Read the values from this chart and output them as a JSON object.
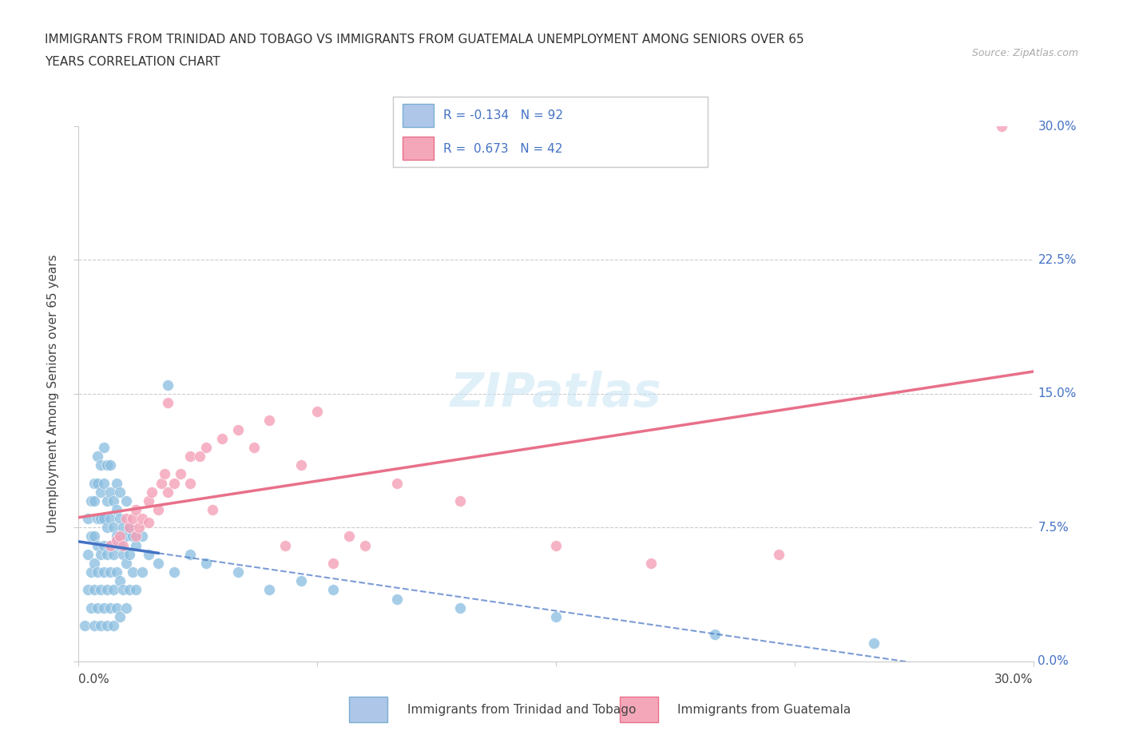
{
  "title_line1": "IMMIGRANTS FROM TRINIDAD AND TOBAGO VS IMMIGRANTS FROM GUATEMALA UNEMPLOYMENT AMONG SENIORS OVER 65",
  "title_line2": "YEARS CORRELATION CHART",
  "source": "Source: ZipAtlas.com",
  "ylabel": "Unemployment Among Seniors over 65 years",
  "watermark": "ZIPatlas",
  "tt_color": "#89bde0",
  "gt_color": "#f4a0b8",
  "tt_line_color": "#4472c4",
  "gt_line_color": "#e8708a",
  "xlim": [
    0.0,
    0.3
  ],
  "ylim": [
    0.0,
    0.3
  ],
  "grid_color": "#cccccc",
  "background_color": "#ffffff",
  "tt_scatter": [
    [
      0.002,
      0.02
    ],
    [
      0.003,
      0.04
    ],
    [
      0.003,
      0.06
    ],
    [
      0.003,
      0.08
    ],
    [
      0.004,
      0.03
    ],
    [
      0.004,
      0.05
    ],
    [
      0.004,
      0.07
    ],
    [
      0.004,
      0.09
    ],
    [
      0.005,
      0.02
    ],
    [
      0.005,
      0.04
    ],
    [
      0.005,
      0.055
    ],
    [
      0.005,
      0.07
    ],
    [
      0.005,
      0.09
    ],
    [
      0.005,
      0.1
    ],
    [
      0.006,
      0.03
    ],
    [
      0.006,
      0.05
    ],
    [
      0.006,
      0.065
    ],
    [
      0.006,
      0.08
    ],
    [
      0.006,
      0.1
    ],
    [
      0.006,
      0.115
    ],
    [
      0.007,
      0.02
    ],
    [
      0.007,
      0.04
    ],
    [
      0.007,
      0.06
    ],
    [
      0.007,
      0.08
    ],
    [
      0.007,
      0.095
    ],
    [
      0.007,
      0.11
    ],
    [
      0.008,
      0.03
    ],
    [
      0.008,
      0.05
    ],
    [
      0.008,
      0.065
    ],
    [
      0.008,
      0.08
    ],
    [
      0.008,
      0.1
    ],
    [
      0.008,
      0.12
    ],
    [
      0.009,
      0.02
    ],
    [
      0.009,
      0.04
    ],
    [
      0.009,
      0.06
    ],
    [
      0.009,
      0.075
    ],
    [
      0.009,
      0.09
    ],
    [
      0.009,
      0.11
    ],
    [
      0.01,
      0.03
    ],
    [
      0.01,
      0.05
    ],
    [
      0.01,
      0.065
    ],
    [
      0.01,
      0.08
    ],
    [
      0.01,
      0.095
    ],
    [
      0.01,
      0.11
    ],
    [
      0.011,
      0.02
    ],
    [
      0.011,
      0.04
    ],
    [
      0.011,
      0.06
    ],
    [
      0.011,
      0.075
    ],
    [
      0.011,
      0.09
    ],
    [
      0.012,
      0.03
    ],
    [
      0.012,
      0.05
    ],
    [
      0.012,
      0.07
    ],
    [
      0.012,
      0.085
    ],
    [
      0.012,
      0.1
    ],
    [
      0.013,
      0.025
    ],
    [
      0.013,
      0.045
    ],
    [
      0.013,
      0.065
    ],
    [
      0.013,
      0.08
    ],
    [
      0.013,
      0.095
    ],
    [
      0.014,
      0.04
    ],
    [
      0.014,
      0.06
    ],
    [
      0.014,
      0.075
    ],
    [
      0.015,
      0.03
    ],
    [
      0.015,
      0.055
    ],
    [
      0.015,
      0.07
    ],
    [
      0.015,
      0.09
    ],
    [
      0.016,
      0.04
    ],
    [
      0.016,
      0.06
    ],
    [
      0.016,
      0.075
    ],
    [
      0.017,
      0.05
    ],
    [
      0.017,
      0.07
    ],
    [
      0.018,
      0.04
    ],
    [
      0.018,
      0.065
    ],
    [
      0.02,
      0.05
    ],
    [
      0.02,
      0.07
    ],
    [
      0.022,
      0.06
    ],
    [
      0.025,
      0.055
    ],
    [
      0.028,
      0.155
    ],
    [
      0.03,
      0.05
    ],
    [
      0.035,
      0.06
    ],
    [
      0.04,
      0.055
    ],
    [
      0.05,
      0.05
    ],
    [
      0.06,
      0.04
    ],
    [
      0.07,
      0.045
    ],
    [
      0.08,
      0.04
    ],
    [
      0.1,
      0.035
    ],
    [
      0.12,
      0.03
    ],
    [
      0.15,
      0.025
    ],
    [
      0.2,
      0.015
    ],
    [
      0.25,
      0.01
    ]
  ],
  "gt_scatter": [
    [
      0.01,
      0.065
    ],
    [
      0.012,
      0.068
    ],
    [
      0.013,
      0.07
    ],
    [
      0.014,
      0.065
    ],
    [
      0.015,
      0.08
    ],
    [
      0.016,
      0.075
    ],
    [
      0.017,
      0.08
    ],
    [
      0.018,
      0.085
    ],
    [
      0.018,
      0.07
    ],
    [
      0.019,
      0.075
    ],
    [
      0.02,
      0.08
    ],
    [
      0.022,
      0.09
    ],
    [
      0.022,
      0.078
    ],
    [
      0.023,
      0.095
    ],
    [
      0.025,
      0.085
    ],
    [
      0.026,
      0.1
    ],
    [
      0.027,
      0.105
    ],
    [
      0.028,
      0.095
    ],
    [
      0.028,
      0.145
    ],
    [
      0.03,
      0.1
    ],
    [
      0.032,
      0.105
    ],
    [
      0.035,
      0.115
    ],
    [
      0.035,
      0.1
    ],
    [
      0.038,
      0.115
    ],
    [
      0.04,
      0.12
    ],
    [
      0.042,
      0.085
    ],
    [
      0.045,
      0.125
    ],
    [
      0.05,
      0.13
    ],
    [
      0.055,
      0.12
    ],
    [
      0.06,
      0.135
    ],
    [
      0.065,
      0.065
    ],
    [
      0.07,
      0.11
    ],
    [
      0.075,
      0.14
    ],
    [
      0.08,
      0.055
    ],
    [
      0.085,
      0.07
    ],
    [
      0.09,
      0.065
    ],
    [
      0.1,
      0.1
    ],
    [
      0.12,
      0.09
    ],
    [
      0.15,
      0.065
    ],
    [
      0.18,
      0.055
    ],
    [
      0.22,
      0.06
    ],
    [
      0.29,
      0.3
    ]
  ]
}
